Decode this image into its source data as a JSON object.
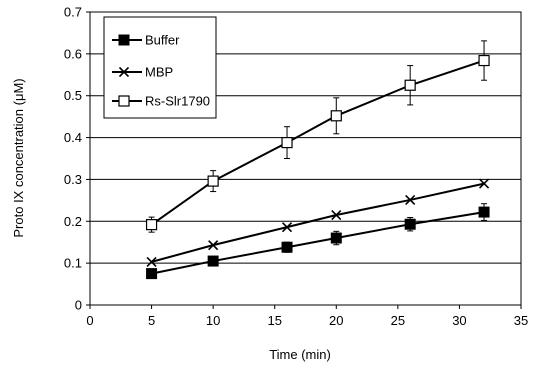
{
  "chart_data": {
    "type": "line",
    "title": "",
    "xlabel": "Time (min)",
    "ylabel": "Proto IX concentration (μM)",
    "xlim": [
      0,
      35
    ],
    "ylim": [
      0,
      0.7
    ],
    "xticks": [
      "0",
      "5",
      "10",
      "15",
      "20",
      "25",
      "30",
      "35"
    ],
    "yticks": [
      "0",
      "0.1",
      "0.2",
      "0.3",
      "0.4",
      "0.5",
      "0.6",
      "0.7"
    ],
    "grid": "horizontal",
    "legend_position": "top-left",
    "x": [
      5,
      10,
      16,
      20,
      26,
      32
    ],
    "series": [
      {
        "name": "Buffer",
        "marker": "filled-square",
        "values": [
          0.075,
          0.105,
          0.138,
          0.16,
          0.193,
          0.222
        ],
        "errors": [
          0.005,
          0.008,
          0.012,
          0.016,
          0.016,
          0.02
        ]
      },
      {
        "name": "MBP",
        "marker": "x",
        "values": [
          0.103,
          0.143,
          0.186,
          0.215,
          0.251,
          0.29
        ],
        "errors": [
          0,
          0,
          0,
          0,
          0,
          0
        ]
      },
      {
        "name": "Rs-Slr1790",
        "marker": "open-square",
        "values": [
          0.192,
          0.296,
          0.388,
          0.452,
          0.525,
          0.584
        ],
        "errors": [
          0.018,
          0.025,
          0.038,
          0.043,
          0.047,
          0.047
        ]
      }
    ],
    "colors": {
      "line": "#000000",
      "grid": "#000000",
      "background": "#ffffff"
    }
  }
}
